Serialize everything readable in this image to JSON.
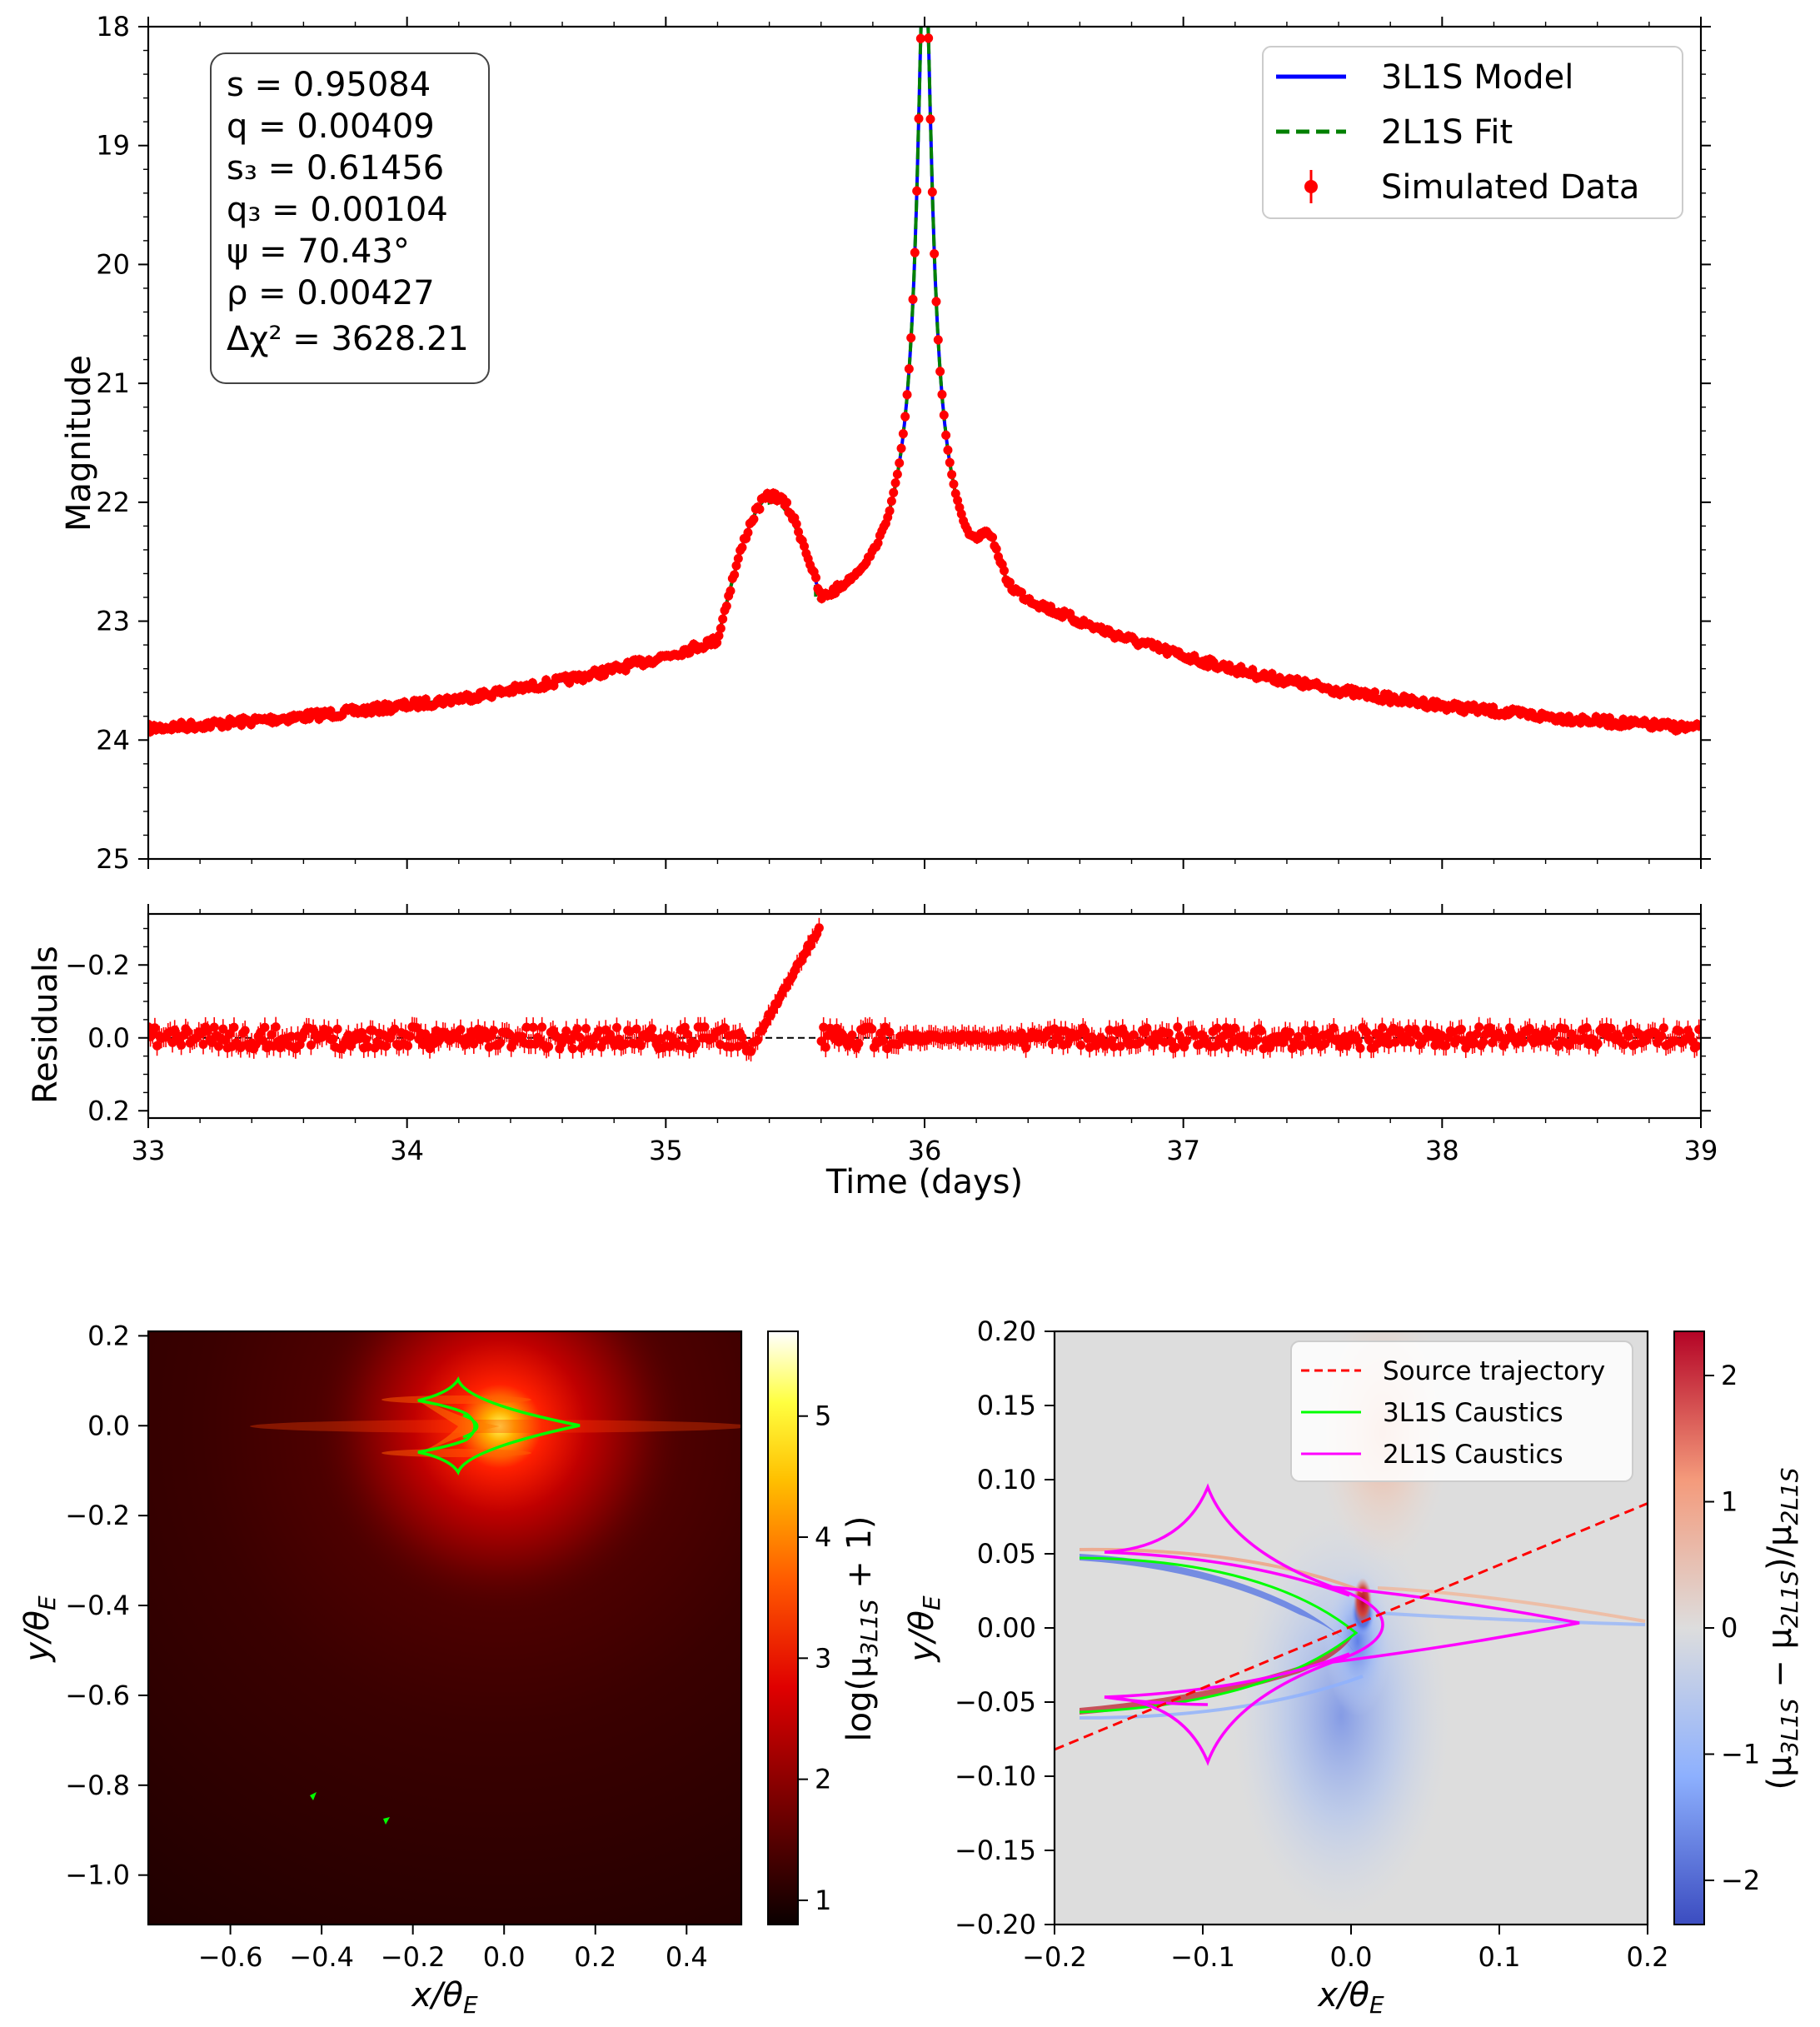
{
  "light_curve": {
    "ylabel": "Magnitude",
    "y_ticks": [
      "18",
      "19",
      "20",
      "21",
      "22",
      "23",
      "24",
      "25"
    ],
    "legend": {
      "model": "3L1S Model",
      "fit": "2L1S Fit",
      "data": "Simulated Data"
    },
    "params": {
      "s": "s = 0.95084",
      "q": "q = 0.00409",
      "s3": "s₃ = 0.61456",
      "q3": "q₃ = 0.00104",
      "psi": "ψ = 70.43°",
      "rho": "ρ = 0.00427",
      "dchi2": "Δχ² = 3628.21"
    }
  },
  "residuals": {
    "ylabel": "Residuals",
    "y_ticks": [
      "−0.2",
      "0.0",
      "0.2"
    ],
    "xlabel": "Time (days)",
    "x_ticks": [
      "33",
      "34",
      "35",
      "36",
      "37",
      "38",
      "39"
    ]
  },
  "magmap": {
    "xlabel": "x/θ",
    "xlabel_sub": "E",
    "ylabel": "y/θ",
    "ylabel_sub": "E",
    "x_ticks": [
      "−0.6",
      "−0.4",
      "−0.2",
      "0.0",
      "0.2",
      "0.4"
    ],
    "y_ticks": [
      "0.2",
      "0.0",
      "−0.2",
      "−0.4",
      "−0.6",
      "−0.8",
      "−1.0"
    ],
    "cbar_label": "log(μ",
    "cbar_label_sub": "3L1S",
    "cbar_label_end": " + 1)",
    "cbar_ticks": [
      "5",
      "4",
      "3",
      "2",
      "1"
    ]
  },
  "diffmap": {
    "xlabel": "x/θ",
    "xlabel_sub": "E",
    "ylabel": "y/θ",
    "ylabel_sub": "E",
    "x_ticks": [
      "−0.2",
      "−0.1",
      "0.0",
      "0.1",
      "0.2"
    ],
    "y_ticks": [
      "0.20",
      "0.15",
      "0.10",
      "0.05",
      "0.00",
      "−0.05",
      "−0.10",
      "−0.15",
      "−0.20"
    ],
    "legend": {
      "traj": "Source trajectory",
      "c3": "3L1S Caustics",
      "c2": "2L1S Caustics"
    },
    "cbar_label": "(μ",
    "cbar_sub1": "3L1S",
    "cbar_mid": " − μ",
    "cbar_sub2": "2L1S",
    "cbar_mid2": ")/μ",
    "cbar_sub3": "2L1S",
    "cbar_ticks": [
      "2",
      "1",
      "0",
      "−1",
      "−2"
    ]
  },
  "chart_data": [
    {
      "type": "line",
      "name": "light-curve",
      "xlim": [
        33,
        39
      ],
      "ylim": [
        25,
        18
      ],
      "y_inverted": true,
      "series": [
        {
          "name": "3L1S Model",
          "color": "#0000ff",
          "x": [
            33.0,
            33.5,
            34.0,
            34.5,
            35.0,
            35.2,
            35.3,
            35.4,
            35.5,
            35.58,
            35.7,
            35.85,
            35.95,
            36.0,
            36.05,
            36.15,
            36.25,
            36.35,
            36.5,
            37.0,
            37.5,
            38.0,
            38.5,
            39.0
          ],
          "y": [
            24.15,
            24.0,
            23.8,
            23.55,
            23.05,
            22.75,
            22.2,
            21.75,
            21.95,
            22.75,
            22.55,
            22.0,
            20.5,
            18.55,
            20.0,
            21.1,
            21.6,
            22.1,
            22.5,
            23.2,
            23.6,
            23.85,
            24.05,
            24.2
          ]
        },
        {
          "name": "2L1S Fit",
          "color": "#008000",
          "x": [
            33.0,
            33.5,
            34.0,
            34.5,
            35.0,
            35.2,
            35.3,
            35.4,
            35.5,
            35.58,
            35.7,
            35.85,
            35.95,
            36.0,
            36.05,
            36.15,
            36.25,
            36.35,
            36.5,
            37.0,
            37.5,
            38.0,
            38.5,
            39.0
          ],
          "y": [
            24.15,
            24.0,
            23.8,
            23.55,
            23.05,
            22.75,
            22.2,
            21.75,
            22.0,
            22.85,
            22.55,
            22.0,
            20.5,
            18.55,
            20.0,
            21.1,
            21.6,
            22.1,
            22.5,
            23.2,
            23.6,
            23.85,
            24.05,
            24.2
          ]
        },
        {
          "name": "Simulated Data",
          "color": "#ff0000",
          "marker": "o"
        }
      ]
    },
    {
      "type": "scatter",
      "name": "residuals",
      "xlim": [
        33,
        39
      ],
      "ylim": [
        0.22,
        -0.34
      ],
      "y_inverted": true,
      "xlabel": "Time (days)",
      "ylabel": "Residuals",
      "baseline": 0.0,
      "spike": {
        "x": [
          35.35,
          35.4,
          35.45,
          35.5,
          35.55,
          35.58
        ],
        "y": [
          0.0,
          -0.06,
          -0.12,
          -0.19,
          -0.26,
          -0.31
        ]
      }
    },
    {
      "type": "heatmap",
      "name": "magnification-map",
      "xlim": [
        -0.78,
        0.52
      ],
      "ylim": [
        -1.11,
        0.21
      ],
      "colormap": "hot",
      "clim": [
        0.8,
        5.7
      ],
      "peak": {
        "x": 0.0,
        "y": 0.0
      },
      "caustic_color": "#00ff00"
    },
    {
      "type": "heatmap",
      "name": "difference-map",
      "xlim": [
        -0.2,
        0.2
      ],
      "ylim": [
        -0.2,
        0.2
      ],
      "colormap": "coolwarm",
      "clim": [
        -2.35,
        2.35
      ],
      "source_trajectory": {
        "x": [
          -0.2,
          0.2
        ],
        "y": [
          -0.082,
          0.084
        ],
        "color": "#ff0000"
      },
      "caustic_3L1S_color": "#00ff00",
      "caustic_2L1S_color": "#ff00ff"
    }
  ]
}
